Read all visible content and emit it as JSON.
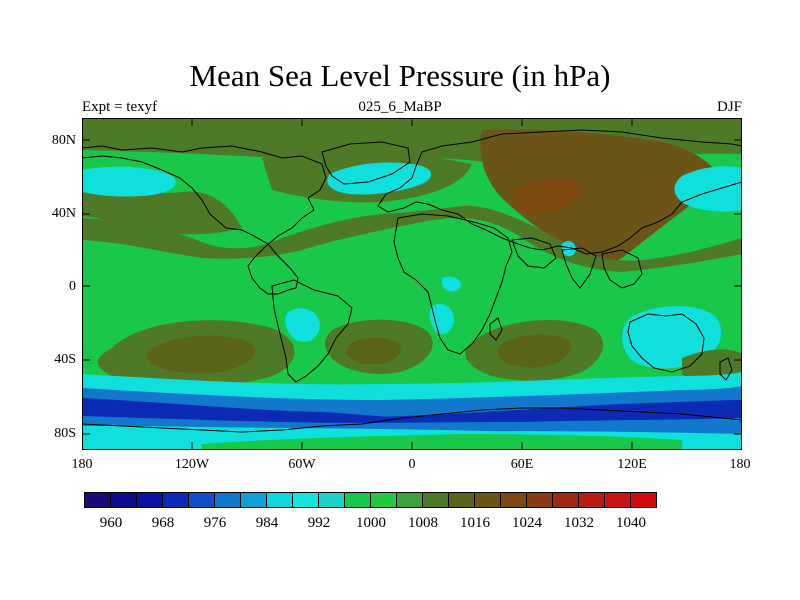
{
  "title": "Mean Sea Level Pressure (in hPa)",
  "left_label": "Expt = texyf",
  "center_label": "025_6_MaBP",
  "right_label": "DJF",
  "y_ticks": [
    "80N",
    "40N",
    "0",
    "40S",
    "80S"
  ],
  "x_ticks": [
    "180",
    "120W",
    "60W",
    "0",
    "60E",
    "120E",
    "180"
  ],
  "colorbar": {
    "labels": [
      "960",
      "968",
      "976",
      "984",
      "992",
      "1000",
      "1008",
      "1016",
      "1024",
      "1032",
      "1040"
    ],
    "colors": [
      "#1a0a78",
      "#0e0a8c",
      "#0a14a0",
      "#0c2ab4",
      "#0f50c6",
      "#1278cc",
      "#10a0d6",
      "#0fd6dc",
      "#14e6dc",
      "#1ad2c8",
      "#19c84b",
      "#23c83c",
      "#3ea03a",
      "#4e7a28",
      "#5a6416",
      "#6e5412",
      "#7d4a10",
      "#8c3a12",
      "#a02812",
      "#b41e12",
      "#c81414",
      "#d20a0a"
    ]
  },
  "palette": {
    "band_dark_blue": "#0c2ab4",
    "band_blue": "#1278cc",
    "band_cyan": "#10e0dc",
    "green_light": "#19c84b",
    "green_mid": "#3aa83c",
    "olive": "#5a6416",
    "brown": "#6b5418",
    "dark_brown": "#7d4a10"
  }
}
